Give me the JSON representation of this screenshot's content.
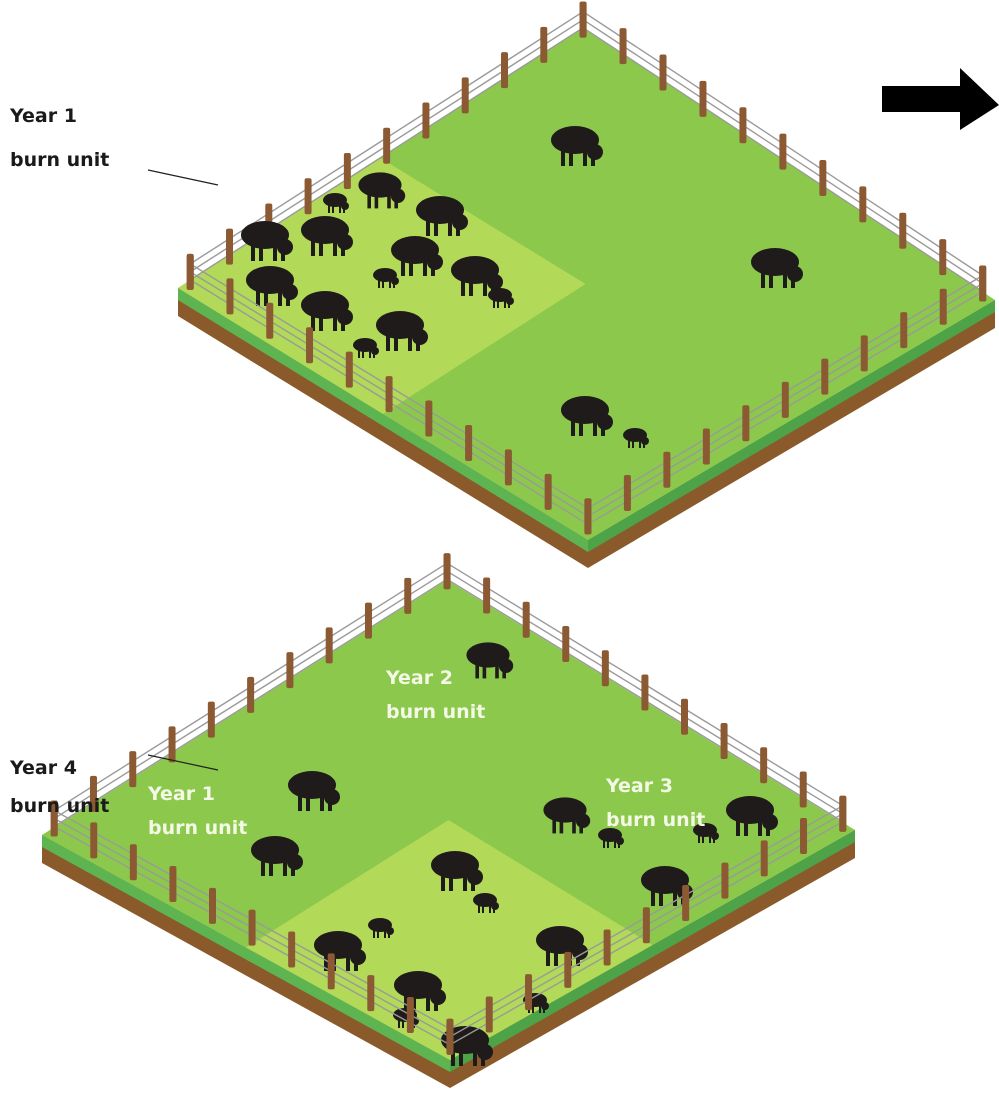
{
  "panels": [
    {
      "labels": [
        {
          "lines": [
            "Year 1",
            "burn unit"
          ]
        }
      ]
    },
    {
      "labels": [
        {
          "lines": [
            "Year 2",
            "burn unit"
          ]
        },
        {
          "lines": [
            "Year 1",
            "burn unit"
          ]
        },
        {
          "lines": [
            "Year 3",
            "burn unit"
          ]
        },
        {
          "lines": [
            "Year 4",
            "burn unit"
          ]
        }
      ]
    }
  ]
}
